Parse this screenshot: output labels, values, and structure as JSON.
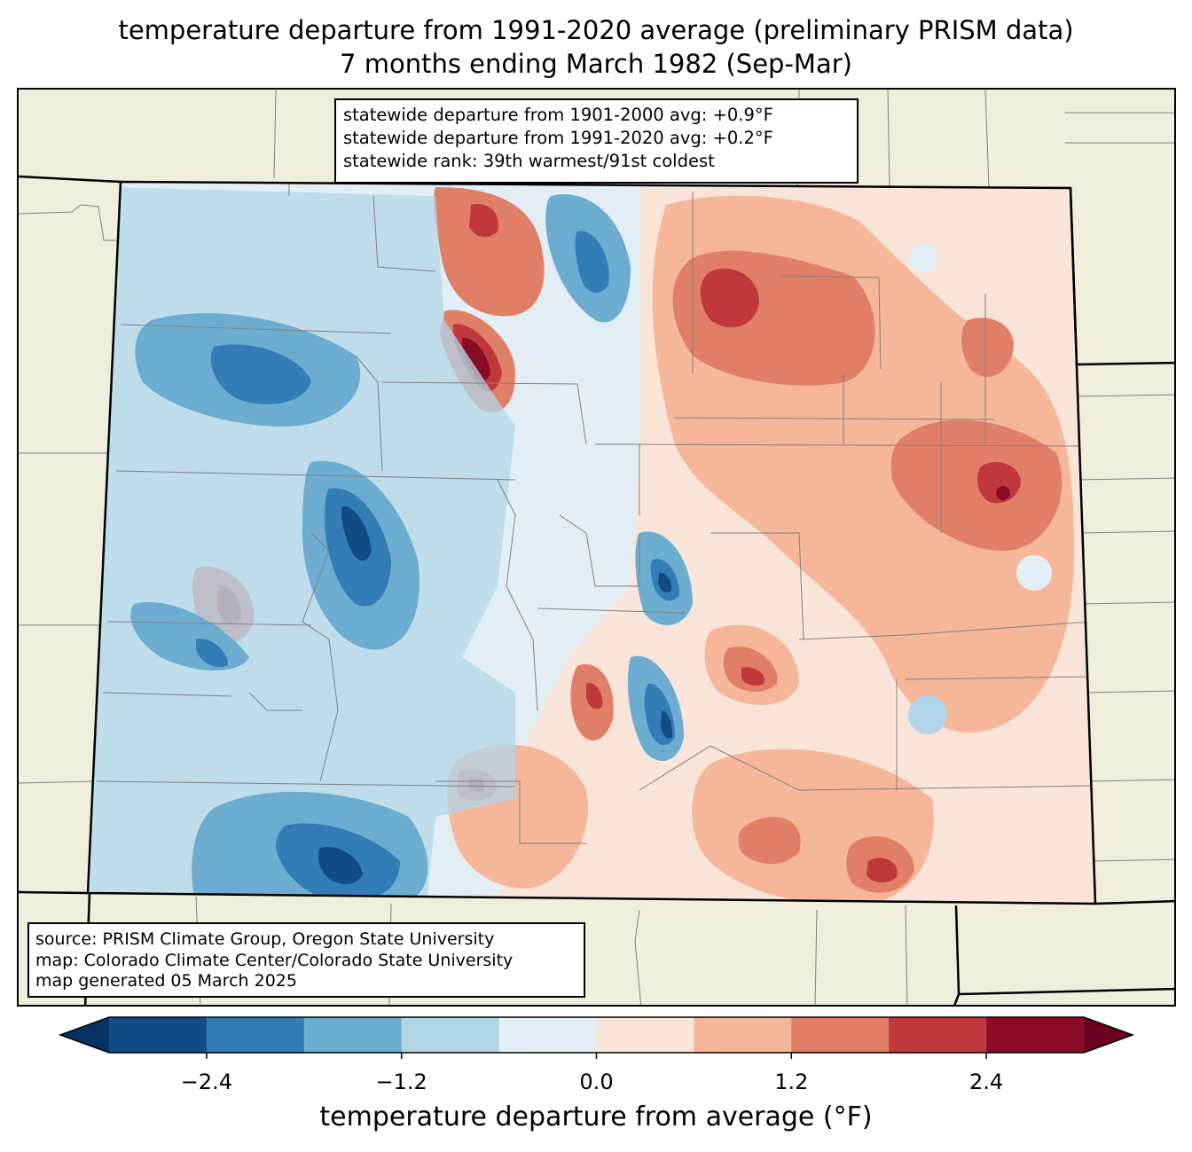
{
  "title": {
    "line1": "temperature departure from 1991-2020 average (preliminary PRISM data)",
    "line2": "7 months ending March 1982 (Sep-Mar)"
  },
  "stats": {
    "line1": "statewide departure from 1901-2000 avg: +0.9°F",
    "line2": "statewide departure from 1991-2020 avg: +0.2°F",
    "line3": "statewide rank: 39th warmest/91st coldest"
  },
  "source": {
    "line1": "source: PRISM Climate Group, Oregon State University",
    "line2": "map: Colorado Climate Center/Colorado State University",
    "line3": "map generated 05 March 2025"
  },
  "colorbar": {
    "label": "temperature departure from average (°F)",
    "ticks": [
      "−2.4",
      "−1.2",
      "0.0",
      "1.2",
      "2.4"
    ],
    "tick_values": [
      -2.4,
      -1.2,
      0.0,
      1.2,
      2.4
    ],
    "range": [
      -3.0,
      3.0
    ],
    "levels": [
      {
        "from": -3.0,
        "to": -2.4,
        "color": "#134b87"
      },
      {
        "from": -2.4,
        "to": -1.8,
        "color": "#327cb7"
      },
      {
        "from": -1.8,
        "to": -1.2,
        "color": "#6bacd0"
      },
      {
        "from": -1.2,
        "to": -0.6,
        "color": "#b1d5e7"
      },
      {
        "from": -0.6,
        "to": 0.0,
        "color": "#e2eef4"
      },
      {
        "from": 0.0,
        "to": 0.6,
        "color": "#f8e4d9"
      },
      {
        "from": 0.6,
        "to": 1.2,
        "color": "#f5b69a"
      },
      {
        "from": 1.2,
        "to": 1.8,
        "color": "#e17e66"
      },
      {
        "from": 1.8,
        "to": 2.4,
        "color": "#c0383c"
      },
      {
        "from": 2.4,
        "to": 3.0,
        "color": "#8a0c26"
      }
    ],
    "under_color": "#063264",
    "over_color": "#6a0120"
  },
  "colors": {
    "land_outside": "#efeddb",
    "state_border": "#000000",
    "county_line": "#808080"
  }
}
